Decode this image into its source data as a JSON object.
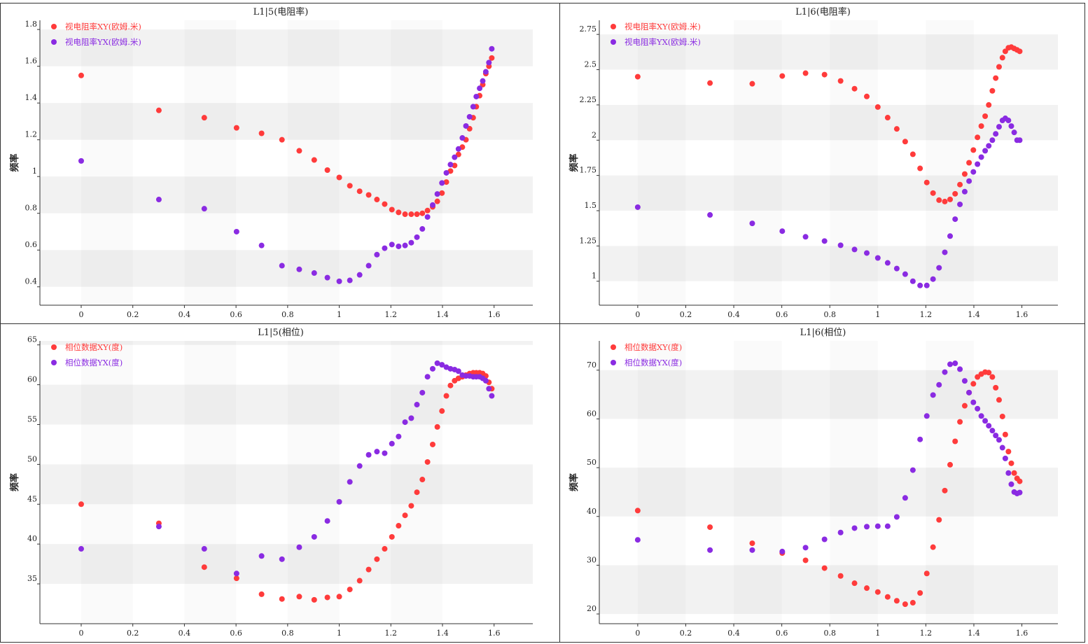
{
  "chart_data": [
    {
      "type": "scatter",
      "title": "L1|5(电阻率)",
      "xlabel": "",
      "ylabel": "频率",
      "xlim": [
        -0.16,
        1.75
      ],
      "ylim": [
        0.3,
        1.85
      ],
      "xticks": [
        0,
        0.2,
        0.4,
        0.6,
        0.8,
        1,
        1.2,
        1.4,
        1.6
      ],
      "xtick_labels": [
        "0",
        "0.2",
        "0.4",
        "0.6",
        "0.8",
        "1",
        "1.2",
        "1.4",
        "1.6"
      ],
      "yticks": [
        0.4,
        0.6,
        0.8,
        1,
        1.2,
        1.4,
        1.6,
        1.8
      ],
      "ytick_labels": [
        "0.4",
        "0.6",
        "0.8",
        "1",
        "1.2",
        "1.4",
        "1.6",
        "1.8"
      ],
      "band_step": 0.2,
      "legend_position": "top-left",
      "series": [
        {
          "name": "视电阻率XY(欧姆.米)",
          "color": "#ff3b3b",
          "x": [
            0,
            0.301,
            0.477,
            0.602,
            0.699,
            0.778,
            0.845,
            0.903,
            0.954,
            1,
            1.041,
            1.079,
            1.114,
            1.146,
            1.176,
            1.204,
            1.23,
            1.255,
            1.279,
            1.301,
            1.322,
            1.342,
            1.362,
            1.38,
            1.398,
            1.415,
            1.431,
            1.447,
            1.462,
            1.477,
            1.491,
            1.505,
            1.519,
            1.531,
            1.544,
            1.556,
            1.568,
            1.58,
            1.591
          ],
          "y": [
            1.55,
            1.36,
            1.32,
            1.265,
            1.235,
            1.2,
            1.14,
            1.09,
            1.035,
            0.995,
            0.95,
            0.92,
            0.9,
            0.875,
            0.85,
            0.82,
            0.805,
            0.795,
            0.795,
            0.795,
            0.8,
            0.815,
            0.835,
            0.865,
            0.91,
            0.97,
            1.03,
            1.06,
            1.12,
            1.16,
            1.2,
            1.26,
            1.32,
            1.38,
            1.44,
            1.5,
            1.56,
            1.6,
            1.645
          ]
        },
        {
          "name": "视电阻率YX(欧姆.米)",
          "color": "#8a2be2",
          "x": [
            0,
            0.301,
            0.477,
            0.602,
            0.699,
            0.778,
            0.845,
            0.903,
            0.954,
            1,
            1.041,
            1.079,
            1.114,
            1.146,
            1.176,
            1.204,
            1.23,
            1.255,
            1.279,
            1.301,
            1.322,
            1.342,
            1.362,
            1.38,
            1.398,
            1.415,
            1.431,
            1.447,
            1.462,
            1.477,
            1.491,
            1.505,
            1.519,
            1.531,
            1.544,
            1.556,
            1.568,
            1.58,
            1.591
          ],
          "y": [
            1.085,
            0.875,
            0.825,
            0.7,
            0.625,
            0.515,
            0.495,
            0.475,
            0.45,
            0.43,
            0.435,
            0.465,
            0.515,
            0.575,
            0.61,
            0.63,
            0.62,
            0.625,
            0.64,
            0.67,
            0.715,
            0.78,
            0.845,
            0.905,
            0.965,
            1.02,
            1.065,
            1.105,
            1.15,
            1.21,
            1.275,
            1.325,
            1.38,
            1.435,
            1.48,
            1.52,
            1.57,
            1.62,
            1.695
          ]
        }
      ]
    },
    {
      "type": "scatter",
      "title": "L1|6(电阻率)",
      "xlabel": "",
      "ylabel": "频率",
      "xlim": [
        -0.16,
        1.75
      ],
      "ylim": [
        0.83,
        2.85
      ],
      "xticks": [
        0,
        0.2,
        0.4,
        0.6,
        0.8,
        1,
        1.2,
        1.4,
        1.6
      ],
      "xtick_labels": [
        "0",
        "0.2",
        "0.4",
        "0.6",
        "0.8",
        "1",
        "1.2",
        "1.4",
        "1.6"
      ],
      "yticks": [
        1,
        1.25,
        1.5,
        1.75,
        2,
        2.25,
        2.5,
        2.75
      ],
      "ytick_labels": [
        "1",
        "1.25",
        "1.5",
        "1.75",
        "2",
        "2.25",
        "2.5",
        "2.75"
      ],
      "band_step": 0.25,
      "legend_position": "top-left",
      "series": [
        {
          "name": "视电阻率XY(欧姆.米)",
          "color": "#ff3b3b",
          "x": [
            0,
            0.301,
            0.477,
            0.602,
            0.699,
            0.778,
            0.845,
            0.903,
            0.954,
            1,
            1.041,
            1.079,
            1.114,
            1.146,
            1.176,
            1.204,
            1.23,
            1.255,
            1.279,
            1.301,
            1.322,
            1.342,
            1.362,
            1.38,
            1.398,
            1.415,
            1.431,
            1.447,
            1.462,
            1.477,
            1.491,
            1.505,
            1.519,
            1.531,
            1.544,
            1.556,
            1.568,
            1.58,
            1.591
          ],
          "y": [
            2.45,
            2.405,
            2.4,
            2.455,
            2.475,
            2.465,
            2.42,
            2.365,
            2.31,
            2.235,
            2.16,
            2.08,
            1.99,
            1.9,
            1.8,
            1.7,
            1.625,
            1.575,
            1.565,
            1.58,
            1.62,
            1.685,
            1.76,
            1.84,
            1.93,
            2.02,
            2.1,
            2.17,
            2.25,
            2.35,
            2.44,
            2.52,
            2.585,
            2.63,
            2.655,
            2.66,
            2.65,
            2.64,
            2.63
          ]
        },
        {
          "name": "视电阻率YX(欧姆.米)",
          "color": "#8a2be2",
          "x": [
            0,
            0.301,
            0.477,
            0.602,
            0.699,
            0.778,
            0.845,
            0.903,
            0.954,
            1,
            1.041,
            1.079,
            1.114,
            1.146,
            1.176,
            1.204,
            1.23,
            1.255,
            1.279,
            1.301,
            1.322,
            1.342,
            1.362,
            1.38,
            1.398,
            1.415,
            1.431,
            1.447,
            1.462,
            1.477,
            1.491,
            1.505,
            1.519,
            1.531,
            1.544,
            1.556,
            1.568,
            1.58,
            1.591
          ],
          "y": [
            1.525,
            1.47,
            1.41,
            1.355,
            1.315,
            1.285,
            1.255,
            1.225,
            1.2,
            1.165,
            1.13,
            1.09,
            1.05,
            1.0,
            0.97,
            0.97,
            1.015,
            1.095,
            1.205,
            1.32,
            1.44,
            1.545,
            1.635,
            1.71,
            1.775,
            1.83,
            1.88,
            1.925,
            1.96,
            2.0,
            2.045,
            2.095,
            2.14,
            2.155,
            2.14,
            2.1,
            2.055,
            2.0,
            2.0
          ]
        }
      ]
    },
    {
      "type": "scatter",
      "title": "L1|5(相位)",
      "xlabel": "",
      "ylabel": "频率",
      "xlim": [
        -0.16,
        1.75
      ],
      "ylim": [
        30,
        65.5
      ],
      "xticks": [
        0,
        0.2,
        0.4,
        0.6,
        0.8,
        1,
        1.2,
        1.4,
        1.6
      ],
      "xtick_labels": [
        "0",
        "0.2",
        "0.4",
        "0.6",
        "0.8",
        "1",
        "1.2",
        "1.4",
        "1.6"
      ],
      "yticks": [
        35,
        40,
        45,
        50,
        55,
        60,
        65
      ],
      "ytick_labels": [
        "35",
        "40",
        "45",
        "50",
        "55",
        "60",
        "65"
      ],
      "band_step": 5,
      "legend_position": "top-left",
      "series": [
        {
          "name": "相位数据XY(度)",
          "color": "#ff3b3b",
          "x": [
            0,
            0.301,
            0.477,
            0.602,
            0.699,
            0.778,
            0.845,
            0.903,
            0.954,
            1,
            1.041,
            1.079,
            1.114,
            1.146,
            1.176,
            1.204,
            1.23,
            1.255,
            1.279,
            1.301,
            1.322,
            1.342,
            1.362,
            1.38,
            1.398,
            1.415,
            1.431,
            1.447,
            1.462,
            1.477,
            1.491,
            1.505,
            1.519,
            1.531,
            1.544,
            1.556,
            1.568,
            1.58,
            1.591
          ],
          "y": [
            45.0,
            42.6,
            37.1,
            35.7,
            33.7,
            33.1,
            33.4,
            33.0,
            33.3,
            33.4,
            34.3,
            35.4,
            36.8,
            38.1,
            39.4,
            40.9,
            42.3,
            43.6,
            44.8,
            46.5,
            48.1,
            50.3,
            52.5,
            54.7,
            56.7,
            58.6,
            59.9,
            60.5,
            60.8,
            61.0,
            61.2,
            61.4,
            61.5,
            61.5,
            61.5,
            61.4,
            61.1,
            60.3,
            59.5
          ]
        },
        {
          "name": "相位数据YX(度)",
          "color": "#8a2be2",
          "x": [
            0,
            0.301,
            0.477,
            0.602,
            0.699,
            0.778,
            0.845,
            0.903,
            0.954,
            1,
            1.041,
            1.079,
            1.114,
            1.146,
            1.176,
            1.204,
            1.23,
            1.255,
            1.279,
            1.301,
            1.322,
            1.342,
            1.362,
            1.38,
            1.398,
            1.415,
            1.431,
            1.447,
            1.462,
            1.477,
            1.491,
            1.505,
            1.519,
            1.531,
            1.544,
            1.556,
            1.568,
            1.58,
            1.591
          ],
          "y": [
            39.4,
            42.2,
            39.4,
            36.3,
            38.5,
            38.1,
            39.6,
            40.9,
            42.9,
            45.3,
            47.8,
            49.8,
            51.2,
            51.6,
            51.4,
            52.6,
            53.5,
            55.3,
            55.8,
            57.5,
            59.0,
            61.0,
            62.0,
            62.7,
            62.5,
            62.2,
            62.0,
            61.9,
            61.7,
            61.2,
            61.1,
            61.1,
            61.0,
            61.0,
            61.0,
            60.8,
            60.5,
            59.5,
            58.6
          ]
        }
      ]
    },
    {
      "type": "scatter",
      "title": "L1|6(相位)",
      "xlabel": "",
      "ylabel": "频率",
      "xlim": [
        -0.16,
        1.75
      ],
      "ylim": [
        18,
        76
      ],
      "xticks": [
        0,
        0.2,
        0.4,
        0.6,
        0.8,
        1,
        1.2,
        1.4,
        1.6
      ],
      "xtick_labels": [
        "0",
        "0.2",
        "0.4",
        "0.6",
        "0.8",
        "1",
        "1.2",
        "1.4",
        "1.6"
      ],
      "yticks": [
        20,
        30,
        40,
        50,
        60,
        70
      ],
      "ytick_labels": [
        "20",
        "30",
        "40",
        "50",
        "60",
        "70"
      ],
      "band_step": 10,
      "legend_position": "top-left",
      "series": [
        {
          "name": "相位数据XY(度)",
          "color": "#ff3b3b",
          "x": [
            0,
            0.301,
            0.477,
            0.602,
            0.699,
            0.778,
            0.845,
            0.903,
            0.954,
            1,
            1.041,
            1.079,
            1.114,
            1.146,
            1.176,
            1.204,
            1.23,
            1.255,
            1.279,
            1.301,
            1.322,
            1.342,
            1.362,
            1.38,
            1.398,
            1.415,
            1.431,
            1.447,
            1.462,
            1.477,
            1.491,
            1.505,
            1.519,
            1.531,
            1.544,
            1.556,
            1.568,
            1.58,
            1.591
          ],
          "y": [
            41.2,
            37.8,
            34.5,
            32.5,
            31.0,
            29.4,
            27.8,
            26.3,
            25.3,
            24.5,
            23.5,
            22.7,
            22.0,
            22.3,
            24.3,
            28.3,
            33.7,
            39.3,
            45.3,
            50.6,
            55.4,
            59.4,
            62.7,
            65.4,
            67.2,
            68.6,
            69.2,
            69.6,
            69.5,
            68.6,
            66.4,
            63.9,
            60.5,
            56.8,
            53.3,
            50.9,
            48.9,
            47.8,
            47.2
          ]
        },
        {
          "name": "相位数据YX(度)",
          "color": "#8a2be2",
          "x": [
            0,
            0.301,
            0.477,
            0.602,
            0.699,
            0.778,
            0.845,
            0.903,
            0.954,
            1,
            1.041,
            1.079,
            1.114,
            1.146,
            1.176,
            1.204,
            1.23,
            1.255,
            1.279,
            1.301,
            1.322,
            1.342,
            1.362,
            1.38,
            1.398,
            1.415,
            1.431,
            1.447,
            1.462,
            1.477,
            1.491,
            1.505,
            1.519,
            1.531,
            1.544,
            1.556,
            1.568,
            1.58,
            1.591
          ],
          "y": [
            35.2,
            33.1,
            33.1,
            32.8,
            33.6,
            35.3,
            36.7,
            37.6,
            37.9,
            38.0,
            38.0,
            39.9,
            43.8,
            49.5,
            55.8,
            60.6,
            64.9,
            67.0,
            69.6,
            71.2,
            71.4,
            70.2,
            67.8,
            65.4,
            63.4,
            62.1,
            60.6,
            59.6,
            58.6,
            57.6,
            56.6,
            55.7,
            54.1,
            51.9,
            48.9,
            46.6,
            45.0,
            44.7,
            44.9
          ]
        }
      ]
    }
  ]
}
